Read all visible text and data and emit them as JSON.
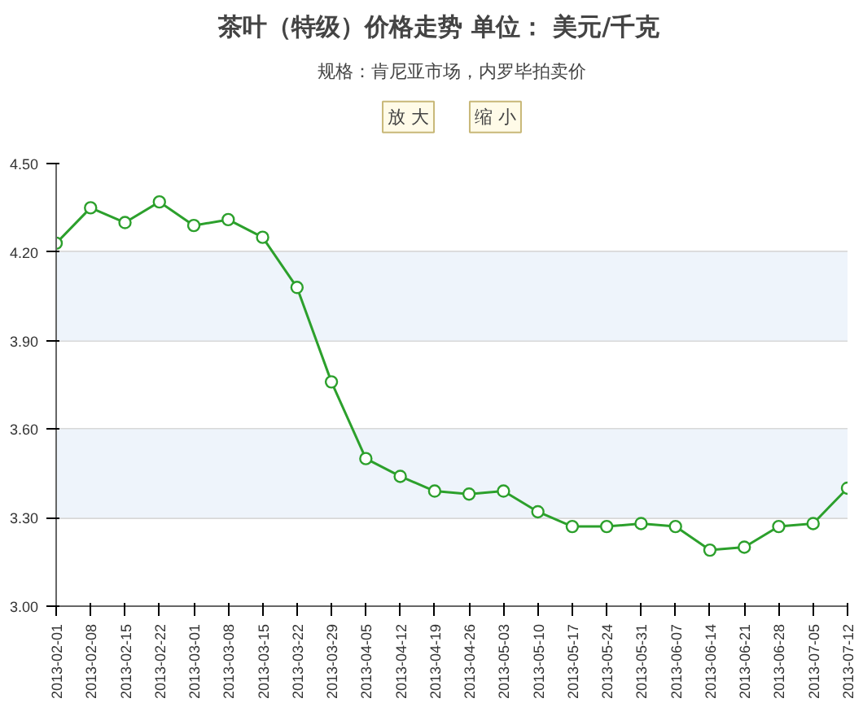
{
  "chart_data": {
    "type": "line",
    "title": "茶叶（特级）价格走势   单位：  美元/千克",
    "subtitle": "规格：肯尼亚市场，内罗毕拍卖价",
    "annotations": [
      "放 大",
      "缩 小"
    ],
    "categories": [
      "2013-02-01",
      "2013-02-08",
      "2013-02-15",
      "2013-02-22",
      "2013-03-01",
      "2013-03-08",
      "2013-03-15",
      "2013-03-22",
      "2013-03-29",
      "2013-04-05",
      "2013-04-12",
      "2013-04-19",
      "2013-04-26",
      "2013-05-03",
      "2013-05-10",
      "2013-05-17",
      "2013-05-24",
      "2013-05-31",
      "2013-06-07",
      "2013-06-14",
      "2013-06-21",
      "2013-06-28",
      "2013-07-05",
      "2013-07-12"
    ],
    "series": [
      {
        "color": "#2ca02c",
        "values": [
          4.23,
          4.35,
          4.3,
          4.37,
          4.29,
          4.31,
          4.25,
          4.08,
          3.76,
          3.5,
          3.44,
          3.39,
          3.38,
          3.39,
          3.32,
          3.27,
          3.27,
          3.28,
          3.27,
          3.19,
          3.2,
          3.27,
          3.28,
          3.4
        ]
      }
    ],
    "ylim": [
      3.0,
      4.5
    ],
    "yticks": [
      {
        "value": 3.0,
        "label": "3.00"
      },
      {
        "value": 3.3,
        "label": "3.30"
      },
      {
        "value": 3.6,
        "label": "3.60"
      },
      {
        "value": 3.9,
        "label": "3.90"
      },
      {
        "value": 4.2,
        "label": "4.20"
      },
      {
        "value": 4.5,
        "label": "4.50"
      }
    ],
    "bands": [
      {
        "axis": "y",
        "from": 3.3,
        "to": 3.6,
        "color": "#eef4fb"
      },
      {
        "axis": "y",
        "from": 3.9,
        "to": 4.2,
        "color": "#eef4fb"
      }
    ],
    "grid": "y",
    "marker": "circle",
    "line_style": "solid"
  }
}
